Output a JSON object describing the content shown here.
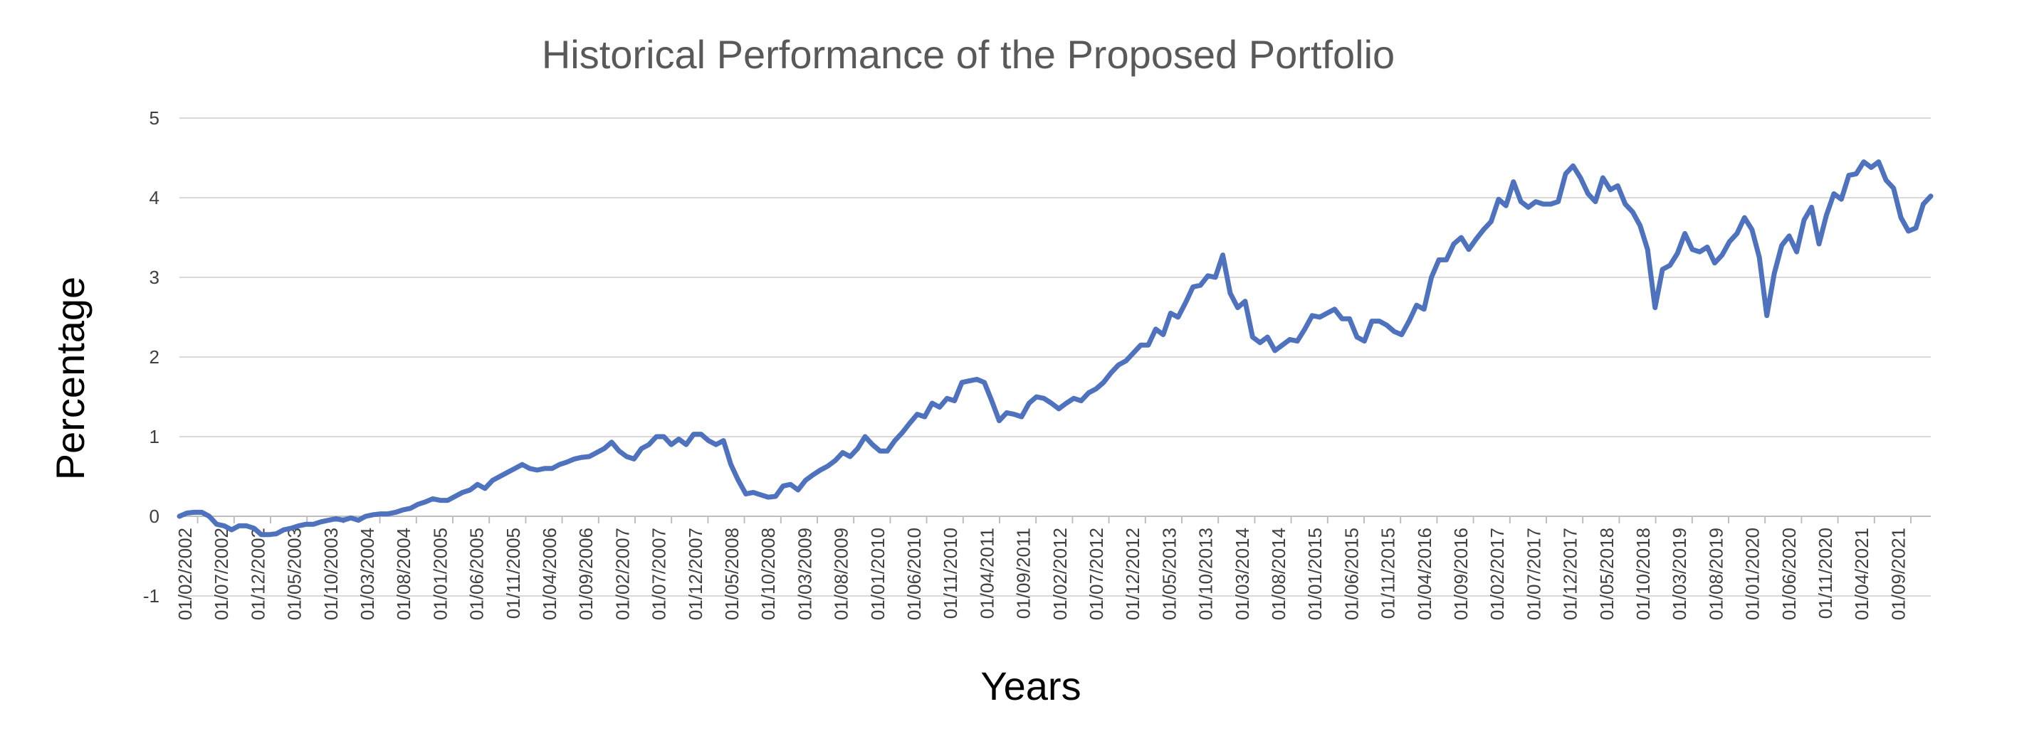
{
  "chart_data": {
    "type": "line",
    "title": "Historical Performance of the Proposed Portfolio",
    "xlabel": "Years",
    "ylabel": "Percentage",
    "ylim": [
      -1,
      5
    ],
    "yticks": [
      "-1",
      "0",
      "1",
      "2",
      "3",
      "4",
      "5"
    ],
    "grid": true,
    "legend": "none",
    "color": "#4e72bd",
    "x_tick_labels": [
      "01/02/2002",
      "01/07/2002",
      "01/12/2002",
      "01/05/2003",
      "01/10/2003",
      "01/03/2004",
      "01/08/2004",
      "01/01/2005",
      "01/06/2005",
      "01/11/2005",
      "01/04/2006",
      "01/09/2006",
      "01/02/2007",
      "01/07/2007",
      "01/12/2007",
      "01/05/2008",
      "01/10/2008",
      "01/03/2009",
      "01/08/2009",
      "01/01/2010",
      "01/06/2010",
      "01/11/2010",
      "01/04/2011",
      "01/09/2011",
      "01/02/2012",
      "01/07/2012",
      "01/12/2012",
      "01/05/2013",
      "01/10/2013",
      "01/03/2014",
      "01/08/2014",
      "01/01/2015",
      "01/06/2015",
      "01/11/2015",
      "01/04/2016",
      "01/09/2016",
      "01/02/2017",
      "01/07/2017",
      "01/12/2017",
      "01/05/2018",
      "01/10/2018",
      "01/03/2019",
      "01/08/2019",
      "01/01/2020",
      "01/06/2020",
      "01/11/2020",
      "01/04/2021",
      "01/09/2021"
    ],
    "series": [
      {
        "values": [
          0.0,
          0.04,
          0.05,
          0.05,
          0.0,
          -0.1,
          -0.12,
          -0.17,
          -0.12,
          -0.12,
          -0.15,
          -0.23,
          -0.23,
          -0.22,
          -0.17,
          -0.15,
          -0.12,
          -0.1,
          -0.1,
          -0.07,
          -0.05,
          -0.03,
          -0.05,
          -0.02,
          -0.05,
          0.0,
          0.02,
          0.03,
          0.03,
          0.05,
          0.08,
          0.1,
          0.15,
          0.18,
          0.22,
          0.2,
          0.2,
          0.25,
          0.3,
          0.33,
          0.4,
          0.35,
          0.45,
          0.5,
          0.55,
          0.6,
          0.65,
          0.6,
          0.58,
          0.6,
          0.6,
          0.65,
          0.68,
          0.72,
          0.74,
          0.75,
          0.8,
          0.85,
          0.93,
          0.82,
          0.75,
          0.72,
          0.85,
          0.9,
          1.0,
          1.0,
          0.9,
          0.97,
          0.9,
          1.03,
          1.03,
          0.95,
          0.9,
          0.95,
          0.65,
          0.45,
          0.28,
          0.3,
          0.27,
          0.24,
          0.25,
          0.38,
          0.4,
          0.33,
          0.45,
          0.52,
          0.58,
          0.63,
          0.7,
          0.8,
          0.75,
          0.85,
          1.0,
          0.9,
          0.82,
          0.82,
          0.95,
          1.05,
          1.17,
          1.28,
          1.25,
          1.42,
          1.37,
          1.48,
          1.45,
          1.68,
          1.7,
          1.72,
          1.68,
          1.45,
          1.2,
          1.3,
          1.28,
          1.25,
          1.42,
          1.5,
          1.48,
          1.42,
          1.35,
          1.42,
          1.48,
          1.45,
          1.55,
          1.6,
          1.68,
          1.8,
          1.9,
          1.95,
          2.05,
          2.15,
          2.15,
          2.35,
          2.28,
          2.55,
          2.5,
          2.68,
          2.88,
          2.9,
          3.02,
          3.0,
          3.28,
          2.8,
          2.62,
          2.7,
          2.25,
          2.18,
          2.25,
          2.08,
          2.15,
          2.22,
          2.2,
          2.35,
          2.52,
          2.5,
          2.55,
          2.6,
          2.48,
          2.48,
          2.25,
          2.2,
          2.45,
          2.45,
          2.4,
          2.32,
          2.28,
          2.45,
          2.65,
          2.6,
          3.0,
          3.22,
          3.22,
          3.42,
          3.5,
          3.35,
          3.48,
          3.6,
          3.7,
          3.98,
          3.9,
          4.2,
          3.95,
          3.88,
          3.95,
          3.92,
          3.92,
          3.95,
          4.3,
          4.4,
          4.25,
          4.05,
          3.95,
          4.25,
          4.1,
          4.15,
          3.92,
          3.82,
          3.65,
          3.35,
          2.62,
          3.1,
          3.15,
          3.3,
          3.55,
          3.35,
          3.32,
          3.38,
          3.18,
          3.28,
          3.45,
          3.55,
          3.75,
          3.6,
          3.25,
          2.52,
          3.05,
          3.4,
          3.52,
          3.32,
          3.72,
          3.88,
          3.42,
          3.78,
          4.05,
          3.98,
          4.28,
          4.3,
          4.45,
          4.38,
          4.45,
          4.22,
          4.12,
          3.75,
          3.58,
          3.62,
          3.92,
          4.02
        ]
      }
    ]
  }
}
